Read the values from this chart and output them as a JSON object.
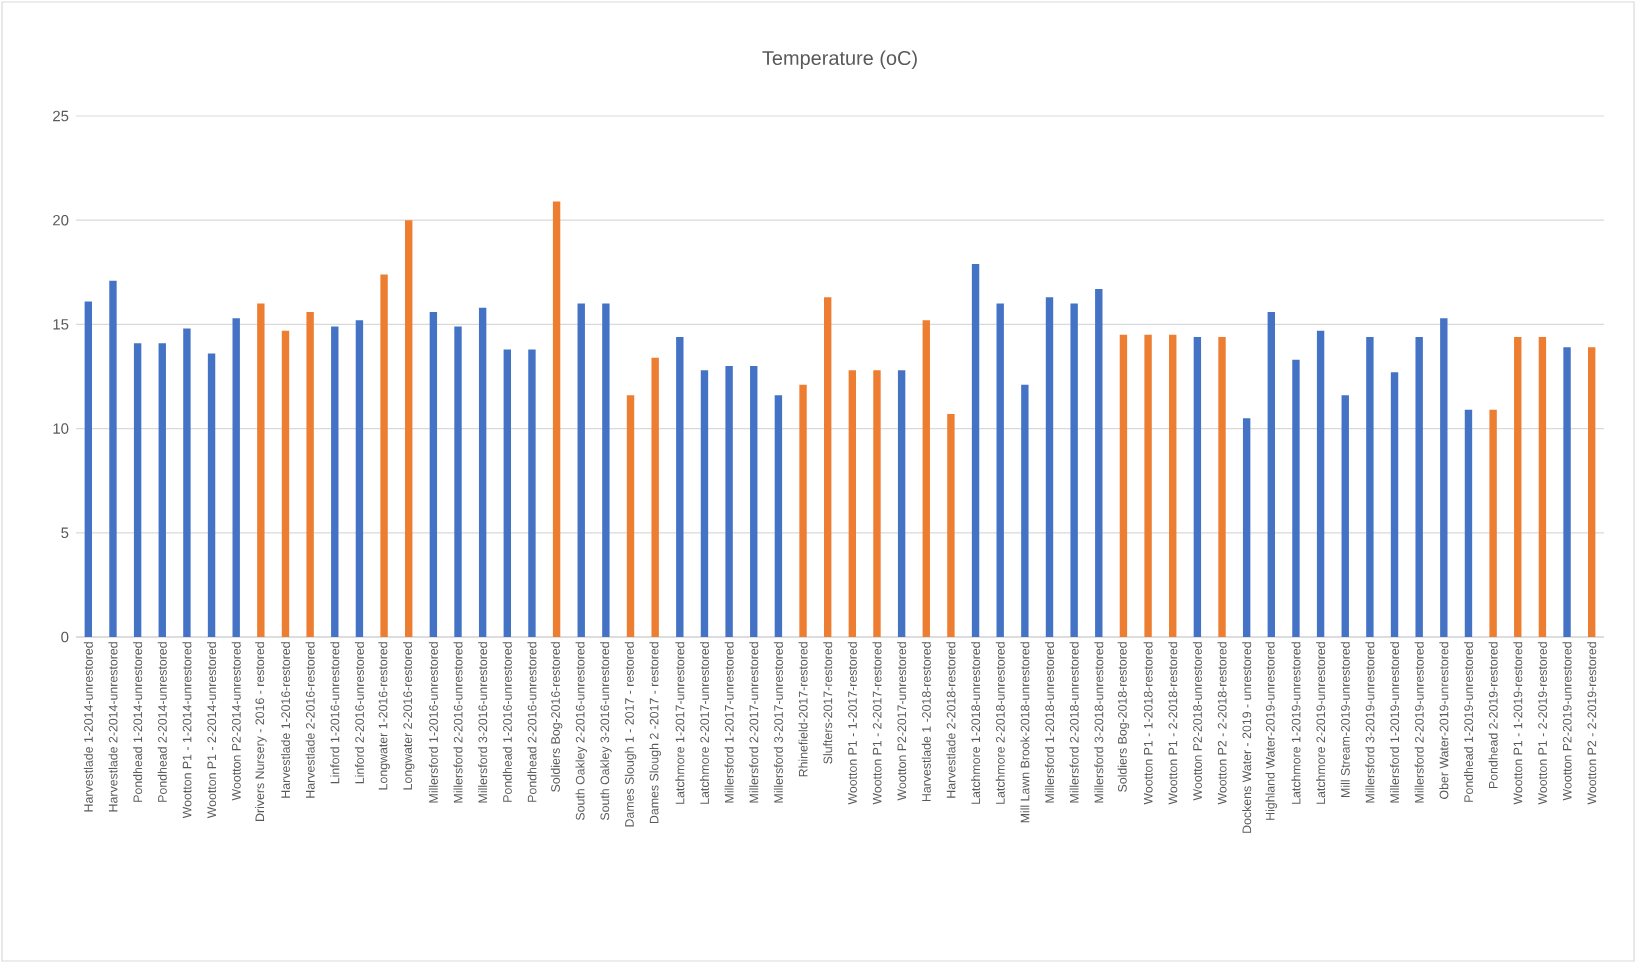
{
  "chart_data": {
    "type": "bar",
    "title": "Temperature (oC)",
    "categories": [
      "Harvestlade 1-2014-unrestored",
      "Harvestlade 2-2014-unrestored",
      "Pondhead 1-2014-unrestored",
      "Pondhead 2-2014-unrestored",
      "Wootton P1 - 1-2014-unrestored",
      "Wootton P1 - 2-2014-unrestored",
      "Wootton P2-2014-unrestored",
      "Drivers Nursery - 2016 - restored",
      "Harvestlade 1-2016-restored",
      "Harvestlade 2-2016-restored",
      "Linford 1-2016-unrestored",
      "Linford 2-2016-unrestored",
      "Longwater 1-2016-restored",
      "Longwater 2-2016-restored",
      "Millersford 1-2016-unrestored",
      "Millersford 2-2016-unrestored",
      "Millersford 3-2016-unrestored",
      "Pondhead 1-2016-unrestored",
      "Pondhead 2-2016-unrestored",
      "Soldiers Bog-2016-restored",
      "South Oakley 2-2016-unrestored",
      "South Oakley 3-2016-unrestored",
      "Dames Slough 1 - 2017 - restored",
      "Dames Slough 2 -2017 - restored",
      "Latchmore 1-2017-unrestored",
      "Latchmore 2-2017-unrestored",
      "Millersford 1-2017-unrestored",
      "Millersford 2-2017-unrestored",
      "Millersford 3-2017-unrestored",
      "Rhinefield-2017-restored",
      "Slufters-2017-restored",
      "Wootton P1 - 1-2017-restored",
      "Wootton P1 - 2-2017-restored",
      "Wootton P2-2017-unrestored",
      "Harvestlade 1 -2018-restored",
      "Harvestlade 2-2018-restored",
      "Latchmore 1-2018-unrestored",
      "Latchmore 2-2018-unrestored",
      "Mill Lawn Brook-2018-unrestored",
      "Millersford 1-2018-unrestored",
      "Millersford 2-2018-unrestored",
      "Millersford 3-2018-unrestored",
      "Soldiers Bog-2018-restored",
      "Wootton P1 - 1-2018-restored",
      "Wootton P1 - 2-2018-restored",
      "Wootton P2-2018-unrestored",
      "Wootton P2 - 2-2018-restored",
      "Dockens Water - 2019 - unrestored",
      "Highland Water-2019-unrestored",
      "Latchmore 1-2019-unrestored",
      "Latchmore 2-2019-unrestored",
      "Mill Stream-2019-unrestored",
      "Millersford 3-2019-unrestored",
      "Millersford 1-2019-unrestored",
      "Millersford 2-2019-unrestored",
      "Ober Water-2019-unrestored",
      "Pondhead 1-2019-unrestored",
      "Pondhead 2-2019-restored",
      "Wootton P1 - 1-2019-restored",
      "Wootton P1 - 2-2019-restored",
      "Wootton P2-2019-unrestored",
      "Wootton P2 - 2-2019-restored"
    ],
    "values": [
      16.1,
      17.1,
      14.1,
      14.1,
      14.8,
      13.6,
      15.3,
      16.0,
      14.7,
      15.6,
      14.9,
      15.2,
      17.4,
      20.0,
      15.6,
      14.9,
      15.8,
      13.8,
      13.8,
      20.9,
      16.0,
      16.0,
      11.6,
      13.4,
      14.4,
      12.8,
      13.0,
      13.0,
      11.6,
      12.1,
      16.3,
      12.8,
      12.8,
      12.8,
      15.2,
      10.7,
      17.9,
      16.0,
      12.1,
      16.3,
      16.0,
      16.7,
      14.5,
      14.5,
      14.5,
      14.4,
      14.4,
      10.5,
      15.6,
      13.3,
      14.7,
      11.6,
      14.4,
      12.7,
      14.4,
      15.3,
      10.9,
      10.9,
      14.4,
      14.4,
      13.9,
      13.9
    ],
    "colors": [
      "#4472c4",
      "#4472c4",
      "#4472c4",
      "#4472c4",
      "#4472c4",
      "#4472c4",
      "#4472c4",
      "#ed7d31",
      "#ed7d31",
      "#ed7d31",
      "#4472c4",
      "#4472c4",
      "#ed7d31",
      "#ed7d31",
      "#4472c4",
      "#4472c4",
      "#4472c4",
      "#4472c4",
      "#4472c4",
      "#ed7d31",
      "#4472c4",
      "#4472c4",
      "#ed7d31",
      "#ed7d31",
      "#4472c4",
      "#4472c4",
      "#4472c4",
      "#4472c4",
      "#4472c4",
      "#ed7d31",
      "#ed7d31",
      "#ed7d31",
      "#ed7d31",
      "#4472c4",
      "#ed7d31",
      "#ed7d31",
      "#4472c4",
      "#4472c4",
      "#4472c4",
      "#4472c4",
      "#4472c4",
      "#4472c4",
      "#ed7d31",
      "#ed7d31",
      "#ed7d31",
      "#4472c4",
      "#ed7d31",
      "#4472c4",
      "#4472c4",
      "#4472c4",
      "#4472c4",
      "#4472c4",
      "#4472c4",
      "#4472c4",
      "#4472c4",
      "#4472c4",
      "#4472c4",
      "#ed7d31",
      "#ed7d31",
      "#ed7d31",
      "#4472c4",
      "#ed7d31"
    ],
    "ylim": [
      0,
      25
    ],
    "yticks": [
      0,
      5,
      10,
      15,
      20,
      25
    ],
    "grid": "y"
  }
}
